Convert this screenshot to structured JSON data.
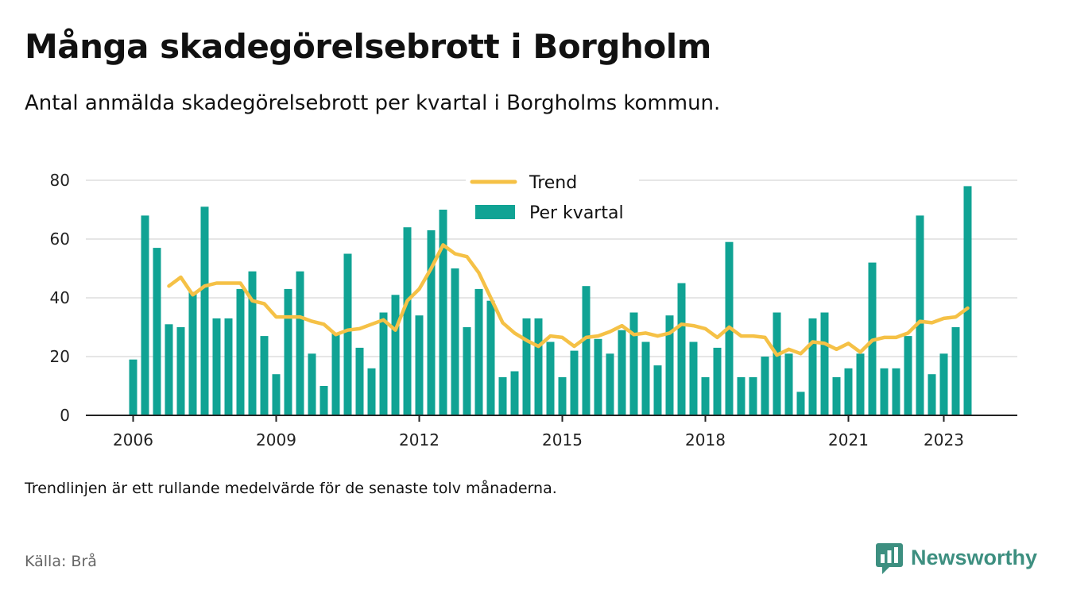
{
  "title": "Många skadegörelsebrott i Borgholm",
  "subtitle": "Antal anmälda skadegörelsebrott per kvartal i Borgholms kommun.",
  "note": "Trendlinjen är ett rullande medelvärde för de senaste tolv månaderna.",
  "source": "Källa: Brå",
  "brand": {
    "name": "Newsworthy",
    "icon": "newsworthy-logo-icon"
  },
  "colors": {
    "bar": "#10a394",
    "trend": "#f5c146",
    "grid": "#dddddd",
    "axis": "#222222",
    "brand": "#3d8f80"
  },
  "chart_data": {
    "type": "bar",
    "x_axis": {
      "ticks": [
        "2006",
        "2009",
        "2012",
        "2015",
        "2018",
        "2021",
        "2023"
      ],
      "range": [
        "2006 Q1",
        "2023 Q3"
      ]
    },
    "y_axis": {
      "ticks": [
        0,
        20,
        40,
        60,
        80
      ],
      "ylim": [
        0,
        80
      ]
    },
    "grid": true,
    "legend": {
      "position": "top-center",
      "items": [
        "Trend",
        "Per kvartal"
      ]
    },
    "categories": [
      "2006 Q1",
      "2006 Q2",
      "2006 Q3",
      "2006 Q4",
      "2007 Q1",
      "2007 Q2",
      "2007 Q3",
      "2007 Q4",
      "2008 Q1",
      "2008 Q2",
      "2008 Q3",
      "2008 Q4",
      "2009 Q1",
      "2009 Q2",
      "2009 Q3",
      "2009 Q4",
      "2010 Q1",
      "2010 Q2",
      "2010 Q3",
      "2010 Q4",
      "2011 Q1",
      "2011 Q2",
      "2011 Q3",
      "2011 Q4",
      "2012 Q1",
      "2012 Q2",
      "2012 Q3",
      "2012 Q4",
      "2013 Q1",
      "2013 Q2",
      "2013 Q3",
      "2013 Q4",
      "2014 Q1",
      "2014 Q2",
      "2014 Q3",
      "2014 Q4",
      "2015 Q1",
      "2015 Q2",
      "2015 Q3",
      "2015 Q4",
      "2016 Q1",
      "2016 Q2",
      "2016 Q3",
      "2016 Q4",
      "2017 Q1",
      "2017 Q2",
      "2017 Q3",
      "2017 Q4",
      "2018 Q1",
      "2018 Q2",
      "2018 Q3",
      "2018 Q4",
      "2019 Q1",
      "2019 Q2",
      "2019 Q3",
      "2019 Q4",
      "2020 Q1",
      "2020 Q2",
      "2020 Q3",
      "2020 Q4",
      "2021 Q1",
      "2021 Q2",
      "2021 Q3",
      "2021 Q4",
      "2022 Q1",
      "2022 Q2",
      "2022 Q3",
      "2022 Q4",
      "2023 Q1",
      "2023 Q2",
      "2023 Q3"
    ],
    "series": [
      {
        "name": "Per kvartal",
        "type": "bar",
        "values": [
          19,
          68,
          57,
          31,
          30,
          42,
          71,
          33,
          33,
          43,
          49,
          27,
          14,
          43,
          49,
          21,
          10,
          28,
          55,
          23,
          16,
          35,
          41,
          64,
          34,
          63,
          70,
          50,
          30,
          43,
          39,
          13,
          15,
          33,
          33,
          25,
          13,
          22,
          44,
          26,
          21,
          29,
          35,
          25,
          17,
          34,
          45,
          25,
          13,
          23,
          59,
          13,
          13,
          20,
          35,
          21,
          8,
          33,
          35,
          13,
          16,
          21,
          52,
          16,
          16,
          27,
          68,
          14,
          21,
          30,
          78
        ]
      },
      {
        "name": "Trend",
        "type": "line",
        "values": [
          null,
          null,
          null,
          44,
          47,
          41,
          44,
          45,
          45,
          45,
          39,
          38,
          33.5,
          33.5,
          33.5,
          32,
          31,
          27.5,
          29,
          29.5,
          31,
          32.5,
          29,
          39,
          43,
          50,
          58,
          55,
          54,
          48.5,
          40,
          31.5,
          28,
          25.5,
          23.5,
          27,
          26.5,
          23.5,
          26.5,
          27,
          28.5,
          30.5,
          27.5,
          28,
          27,
          28,
          31,
          30.5,
          29.5,
          26.5,
          30,
          27,
          27,
          26.5,
          20.5,
          22.5,
          21,
          25,
          24.5,
          22.5,
          24.5,
          21.5,
          25.5,
          26.5,
          26.5,
          28,
          32,
          31.5,
          33,
          33.5,
          36.5
        ]
      }
    ]
  }
}
